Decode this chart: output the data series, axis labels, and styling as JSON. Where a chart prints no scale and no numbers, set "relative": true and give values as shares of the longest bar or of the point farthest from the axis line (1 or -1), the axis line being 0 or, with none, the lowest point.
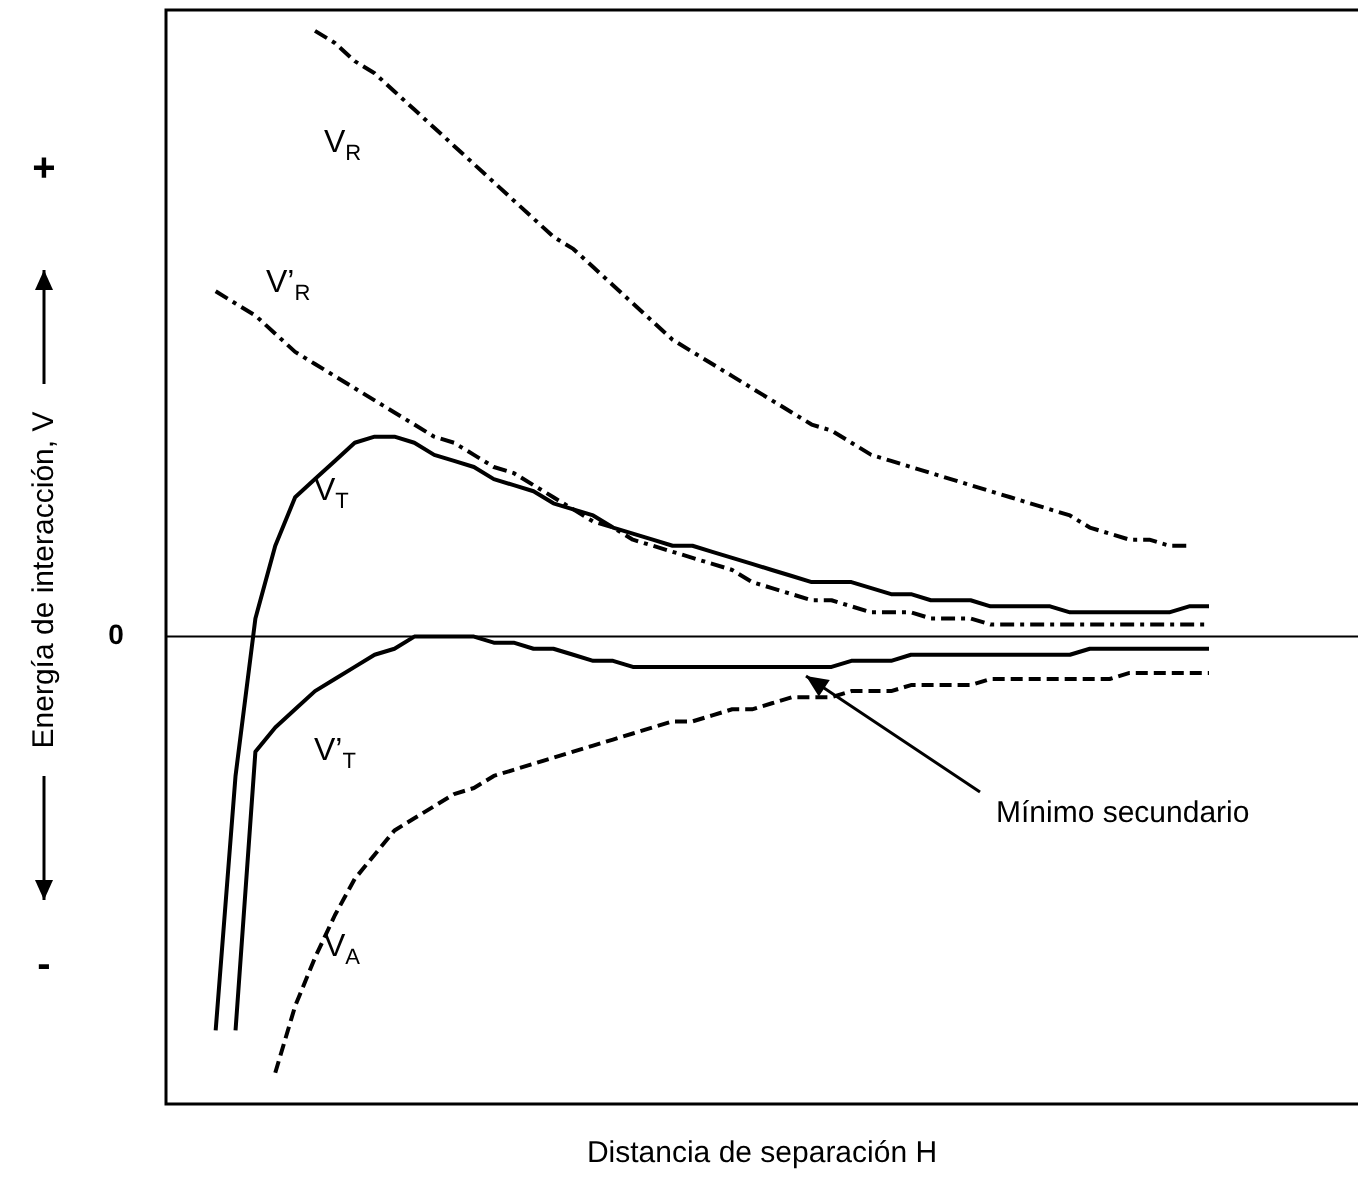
{
  "chart_data": {
    "type": "line",
    "relative": true,
    "legend": false,
    "grid": false,
    "marker": "none",
    "xlabel": "Distancia de separación H",
    "ylabel": "Energía de interacción, V",
    "annotations": [
      "+",
      "-",
      "Mínimo secundario"
    ],
    "ref_lines": [
      {
        "axis": "y",
        "value": 0,
        "label": "0",
        "color": "#000000"
      }
    ],
    "categories": [
      null,
      null,
      null,
      null,
      null,
      null,
      null,
      null,
      null,
      null,
      null,
      null,
      null,
      null,
      null,
      null,
      null,
      null,
      null,
      null,
      null,
      null,
      null,
      null,
      null,
      null,
      null,
      null,
      null,
      null,
      null,
      null,
      null,
      null,
      null,
      null,
      null,
      null,
      null,
      null,
      null,
      null,
      null,
      null,
      null,
      null,
      null,
      null,
      null,
      null,
      null,
      null,
      null,
      null,
      null,
      null,
      null,
      null,
      null,
      null
    ],
    "series": [
      {
        "name": "V$_{R}$",
        "color": "#000000",
        "line_style": "dotted",
        "values": [
          null,
          null,
          null,
          null,
          null,
          null,
          null,
          1.0,
          0.98,
          0.95,
          0.93,
          0.9,
          0.87,
          0.84,
          0.81,
          0.78,
          0.75,
          0.72,
          0.69,
          0.66,
          0.64,
          0.61,
          0.58,
          0.55,
          0.52,
          0.49,
          0.47,
          0.45,
          0.43,
          0.41,
          0.39,
          0.37,
          0.35,
          0.34,
          0.32,
          0.3,
          0.29,
          0.28,
          0.27,
          0.26,
          0.25,
          0.24,
          0.23,
          0.22,
          0.21,
          0.2,
          0.18,
          0.17,
          0.16,
          0.16,
          0.15,
          0.15,
          null,
          null,
          null,
          null,
          null,
          null,
          null,
          null
        ]
      },
      {
        "name": "V’$_{R}$",
        "color": "#000000",
        "line_style": "dotted",
        "values": [
          null,
          null,
          0.57,
          0.55,
          0.53,
          0.5,
          0.47,
          0.45,
          0.43,
          0.41,
          0.39,
          0.37,
          0.35,
          0.33,
          0.32,
          0.3,
          0.28,
          0.27,
          0.25,
          0.23,
          0.21,
          0.19,
          0.18,
          0.16,
          0.15,
          0.14,
          0.13,
          0.12,
          0.11,
          0.09,
          0.08,
          0.07,
          0.06,
          0.06,
          0.05,
          0.04,
          0.04,
          0.04,
          0.03,
          0.03,
          0.03,
          0.02,
          0.02,
          0.02,
          0.02,
          0.02,
          0.02,
          0.02,
          0.02,
          0.02,
          0.02,
          0.02,
          0.02,
          null,
          null,
          null,
          null,
          null,
          null,
          null
        ]
      },
      {
        "name": "V$_{T}$",
        "color": "#000000",
        "line_style": "solid",
        "values": [
          null,
          null,
          -0.65,
          -0.23,
          0.03,
          0.15,
          0.23,
          0.26,
          0.29,
          0.32,
          0.33,
          0.33,
          0.32,
          0.3,
          0.29,
          0.28,
          0.26,
          0.25,
          0.24,
          0.22,
          0.21,
          0.2,
          0.18,
          0.17,
          0.16,
          0.15,
          0.15,
          0.14,
          0.13,
          0.12,
          0.11,
          0.1,
          0.09,
          0.09,
          0.09,
          0.08,
          0.07,
          0.07,
          0.06,
          0.06,
          0.06,
          0.05,
          0.05,
          0.05,
          0.05,
          0.04,
          0.04,
          0.04,
          0.04,
          0.04,
          0.04,
          0.05,
          0.05,
          null,
          null,
          null,
          null,
          null,
          null,
          null
        ]
      },
      {
        "name": "V’$_{T}$",
        "color": "#000000",
        "line_style": "solid",
        "values": [
          null,
          null,
          null,
          -0.65,
          -0.19,
          -0.15,
          -0.12,
          -0.09,
          -0.07,
          -0.05,
          -0.03,
          -0.02,
          0,
          0,
          0,
          0,
          -0.01,
          -0.01,
          -0.02,
          -0.02,
          -0.03,
          -0.04,
          -0.04,
          -0.05,
          -0.05,
          -0.05,
          -0.05,
          -0.05,
          -0.05,
          -0.05,
          -0.05,
          -0.05,
          -0.05,
          -0.05,
          -0.04,
          -0.04,
          -0.04,
          -0.03,
          -0.03,
          -0.03,
          -0.03,
          -0.03,
          -0.03,
          -0.03,
          -0.03,
          -0.03,
          -0.02,
          -0.02,
          -0.02,
          -0.02,
          -0.02,
          -0.02,
          -0.02,
          null,
          null,
          null,
          null,
          null,
          null,
          null
        ]
      },
      {
        "name": "V$_{A}$",
        "color": "#000000",
        "line_style": "dashed",
        "values": [
          null,
          null,
          null,
          null,
          null,
          -0.72,
          -0.61,
          -0.53,
          -0.46,
          -0.4,
          -0.36,
          -0.32,
          -0.3,
          -0.28,
          -0.26,
          -0.25,
          -0.23,
          -0.22,
          -0.21,
          -0.2,
          -0.19,
          -0.18,
          -0.17,
          -0.16,
          -0.15,
          -0.14,
          -0.14,
          -0.13,
          -0.12,
          -0.12,
          -0.11,
          -0.1,
          -0.1,
          -0.1,
          -0.09,
          -0.09,
          -0.09,
          -0.08,
          -0.08,
          -0.08,
          -0.08,
          -0.07,
          -0.07,
          -0.07,
          -0.07,
          -0.07,
          -0.07,
          -0.07,
          -0.06,
          -0.06,
          -0.06,
          -0.06,
          -0.06,
          null,
          null,
          null,
          null,
          null,
          null,
          null
        ]
      }
    ]
  }
}
